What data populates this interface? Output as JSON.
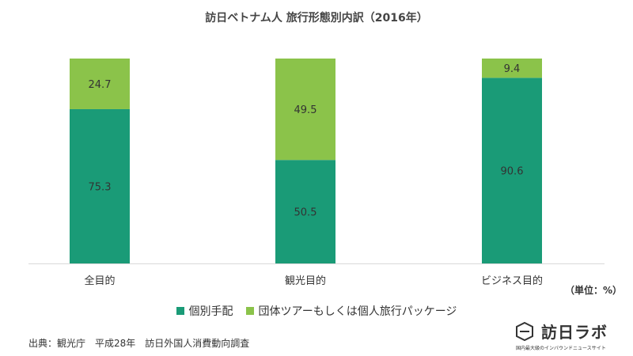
{
  "chart_data": {
    "type": "bar",
    "stacked": true,
    "title": "訪日ベトナム人 旅行形態別内訳（2016年）",
    "categories": [
      "全目的",
      "観光目的",
      "ビジネス目的"
    ],
    "series": [
      {
        "name": "個別手配",
        "values": [
          75.3,
          50.5,
          90.6
        ],
        "color": "#1a9b77"
      },
      {
        "name": "団体ツアーもしくは個人旅行パッケージ",
        "values": [
          24.7,
          49.5,
          9.4
        ],
        "color": "#8bc34a"
      }
    ],
    "ylim": [
      0,
      100
    ],
    "unit_label": "（単位：%）",
    "legend_position": "bottom"
  },
  "source_text": "出典：観光庁　平成28年　訪日外国人消費動向調査",
  "logo": {
    "name": "訪日ラボ",
    "tagline": "国内最大級のインバウンドニュースサイト"
  }
}
